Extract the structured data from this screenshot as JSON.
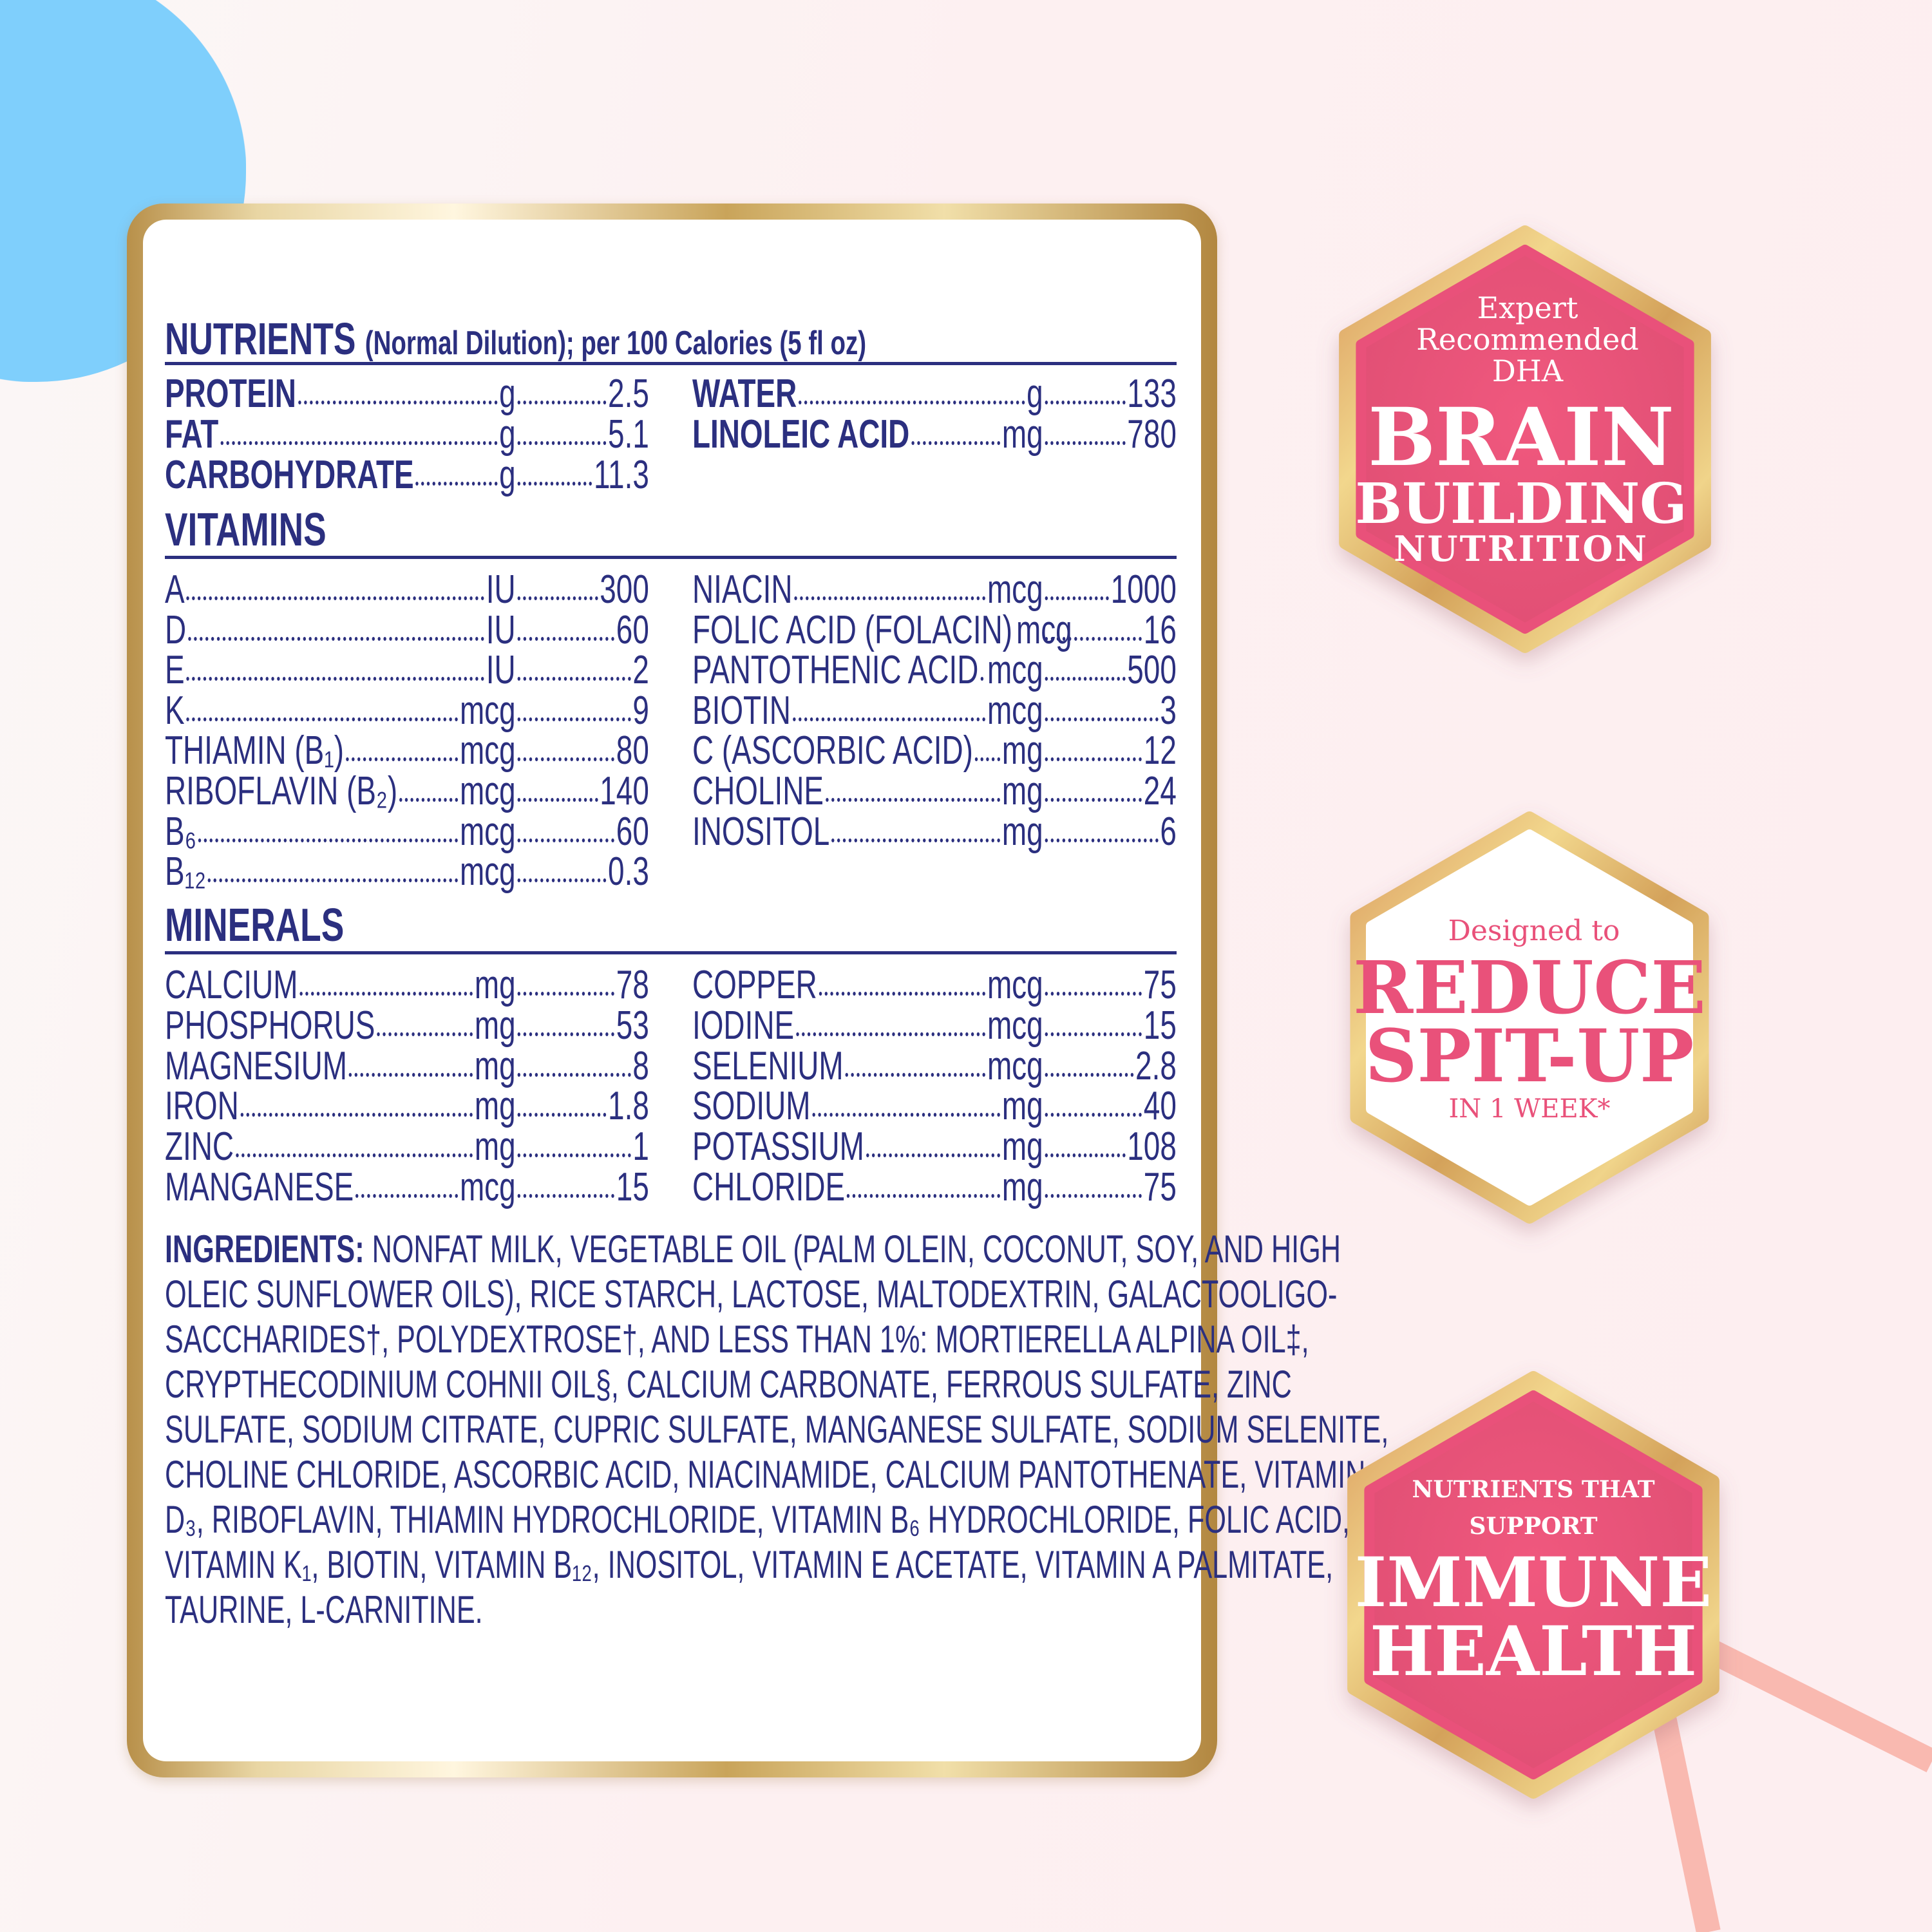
{
  "colors": {
    "navy": "#2b2f7f",
    "pink": "#e9517a",
    "gold": "#d9b56a",
    "blue": "#7fcffc",
    "line": "#f9b9b0"
  },
  "header": {
    "title": "NUTRIENTS",
    "subtitle": "(Normal Dilution); per 100 Calories (5 fl oz)"
  },
  "nutrients": {
    "left": [
      {
        "label": "PROTEIN",
        "unit": "g",
        "value": "2.5"
      },
      {
        "label": "FAT",
        "unit": "g",
        "value": "5.1"
      },
      {
        "label": "CARBOHYDRATE",
        "unit": "g",
        "value": "11.3"
      }
    ],
    "right": [
      {
        "label": "WATER",
        "unit": "g",
        "value": "133"
      },
      {
        "label": "LINOLEIC ACID",
        "unit": "mg",
        "value": "780"
      }
    ]
  },
  "vitamins": {
    "title": "VITAMINS",
    "left": [
      {
        "label": "A",
        "unit": "IU",
        "value": "300"
      },
      {
        "label": "D",
        "unit": "IU",
        "value": "60"
      },
      {
        "label": "E",
        "unit": "IU",
        "value": "2"
      },
      {
        "label": "K",
        "unit": "mcg",
        "value": "9"
      },
      {
        "label": "THIAMIN (B₁)",
        "unit": "mcg",
        "value": "80"
      },
      {
        "label": "RIBOFLAVIN (B₂)",
        "unit": "mcg",
        "value": "140"
      },
      {
        "label": "B₆",
        "unit": "mcg",
        "value": "60"
      },
      {
        "label": "B₁₂",
        "unit": "mcg",
        "value": "0.3"
      }
    ],
    "right": [
      {
        "label": "NIACIN",
        "unit": "mcg",
        "value": "1000"
      },
      {
        "label": "FOLIC ACID (FOLACIN)",
        "unit": "mcg",
        "value": "16"
      },
      {
        "label": "PANTOTHENIC ACID",
        "unit": "mcg",
        "value": "500"
      },
      {
        "label": "BIOTIN",
        "unit": "mcg",
        "value": "3"
      },
      {
        "label": "C (ASCORBIC ACID)",
        "unit": "mg",
        "value": "12"
      },
      {
        "label": "CHOLINE",
        "unit": "mg",
        "value": "24"
      },
      {
        "label": "INOSITOL",
        "unit": "mg",
        "value": "6"
      }
    ]
  },
  "minerals": {
    "title": "MINERALS",
    "left": [
      {
        "label": "CALCIUM",
        "unit": "mg",
        "value": "78"
      },
      {
        "label": "PHOSPHORUS",
        "unit": "mg",
        "value": "53"
      },
      {
        "label": "MAGNESIUM",
        "unit": "mg",
        "value": "8"
      },
      {
        "label": "IRON",
        "unit": "mg",
        "value": "1.8"
      },
      {
        "label": "ZINC",
        "unit": "mg",
        "value": "1"
      },
      {
        "label": "MANGANESE",
        "unit": "mcg",
        "value": "15"
      }
    ],
    "right": [
      {
        "label": "COPPER",
        "unit": "mcg",
        "value": "75"
      },
      {
        "label": "IODINE",
        "unit": "mcg",
        "value": "15"
      },
      {
        "label": "SELENIUM",
        "unit": "mcg",
        "value": "2.8"
      },
      {
        "label": "SODIUM",
        "unit": "mg",
        "value": "40"
      },
      {
        "label": "POTASSIUM",
        "unit": "mg",
        "value": "108"
      },
      {
        "label": "CHLORIDE",
        "unit": "mg",
        "value": "75"
      }
    ]
  },
  "ingredients": {
    "label": "INGREDIENTS:",
    "lines": [
      " NONFAT MILK, VEGETABLE OIL (PALM OLEIN, COCONUT, SOY, AND HIGH",
      "OLEIC SUNFLOWER OILS), RICE STARCH, LACTOSE, MALTODEXTRIN, GALACTOOLIGO-",
      "SACCHARIDES†, POLYDEXTROSE†, AND LESS THAN 1%: MORTIERELLA ALPINA OIL‡,",
      "CRYPTHECODINIUM COHNII OIL§, CALCIUM CARBONATE, FERROUS SULFATE, ZINC",
      "SULFATE, SODIUM CITRATE, CUPRIC SULFATE, MANGANESE SULFATE, SODIUM SELENITE,",
      "CHOLINE CHLORIDE, ASCORBIC ACID, NIACINAMIDE, CALCIUM PANTOTHENATE, VITAMIN",
      "D₃, RIBOFLAVIN, THIAMIN HYDROCHLORIDE, VITAMIN B₆ HYDROCHLORIDE, FOLIC ACID,",
      "VITAMIN K₁, BIOTIN, VITAMIN B₁₂, INOSITOL, VITAMIN E ACETATE, VITAMIN A PALMITATE,",
      "TAURINE, L-CARNITINE."
    ]
  },
  "badges": [
    {
      "lines": [
        "Expert",
        "Recommended",
        "DHA"
      ],
      "headline": [
        "BRAIN",
        "BUILDING"
      ],
      "footer": "NUTRITION"
    },
    {
      "intro": "Designed to",
      "headline": [
        "REDUCE",
        "SPIT-UP"
      ],
      "footer": "IN 1 WEEK*"
    },
    {
      "intro": [
        "NUTRIENTS THAT",
        "SUPPORT"
      ],
      "headline": [
        "IMMUNE",
        "HEALTH"
      ]
    }
  ]
}
